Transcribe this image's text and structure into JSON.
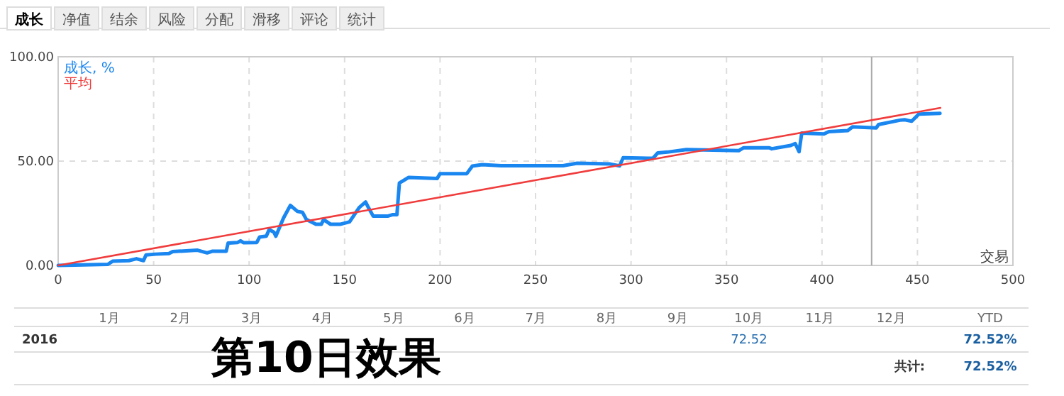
{
  "chart_data": {
    "type": "line",
    "xlabel": "交易",
    "xlim": [
      0,
      500
    ],
    "ylim": [
      0,
      100
    ],
    "xticks": [
      0,
      50,
      100,
      150,
      200,
      250,
      300,
      350,
      400,
      450,
      500
    ],
    "yticks": [
      {
        "value": 0,
        "label": "0.00"
      },
      {
        "value": 50,
        "label": "50.00"
      },
      {
        "value": 100,
        "label": "100.00"
      }
    ],
    "grid": true,
    "legend": "top left",
    "ref_lines": [
      {
        "axis": "x",
        "value": 426,
        "color": "#aaaaaa"
      }
    ],
    "series": [
      {
        "name": "成长, %",
        "color": "#1a86f0",
        "x": [
          0,
          26,
          28.5,
          37,
          41,
          44.7,
          46,
          51,
          58,
          60,
          73,
          78,
          80.6,
          88,
          89,
          94,
          95.5,
          97,
          104,
          105.5,
          109,
          110.5,
          113,
          114,
          118,
          121.6,
          125.3,
          128,
          130,
          135,
          137.8,
          139,
          142.7,
          147.6,
          152.6,
          157.6,
          161,
          162.5,
          165,
          172.5,
          175,
          177.4,
          178.7,
          183.6,
          198.5,
          200,
          214,
          216.9,
          222,
          232,
          251.6,
          264.4,
          271.8,
          289,
          294,
          295.9,
          309,
          311.5,
          314,
          319,
          329,
          356.4,
          359,
          372.4,
          373.7,
          383.6,
          386,
          388,
          389.4,
          401,
          403.6,
          413.5,
          416,
          428.4,
          429.6,
          440.8,
          443.3,
          447,
          450.7,
          461.8
        ],
        "values": [
          0,
          0.5,
          2,
          2.3,
          3.2,
          2.3,
          5,
          5.4,
          5.7,
          6.6,
          7.3,
          6,
          6.8,
          6.8,
          10.7,
          11,
          11.8,
          10.9,
          11,
          13.6,
          14,
          17.2,
          15.9,
          14,
          22.7,
          28.8,
          25.9,
          25.4,
          22,
          19.7,
          19.7,
          22,
          19.7,
          19.7,
          20.9,
          27.7,
          30.4,
          27.7,
          23.6,
          23.6,
          24.3,
          24.3,
          39.5,
          42.2,
          41.7,
          44,
          44,
          47.6,
          48.3,
          47.8,
          47.8,
          47.8,
          49,
          48.6,
          47.7,
          51.6,
          51.4,
          51.4,
          53.9,
          54.3,
          55.5,
          55,
          56.4,
          56.4,
          55.9,
          57.5,
          58.4,
          54.5,
          63.4,
          63,
          64.1,
          64.6,
          66.4,
          65.9,
          67.5,
          69.6,
          69.8,
          69.1,
          72.5,
          72.9
        ]
      },
      {
        "name": "平均",
        "color": "#f03c3c",
        "x": [
          0,
          462
        ],
        "values": [
          0,
          75.5
        ]
      }
    ],
    "annotations": [
      "成长",
      "净值",
      "结余",
      "风险",
      "分配",
      "滑移",
      "评论",
      "统计",
      "1月",
      "2月",
      "3月",
      "4月",
      "5月",
      "6月",
      "7月",
      "8月",
      "9月",
      "10月",
      "11月",
      "12月",
      "YTD",
      "2016",
      "第10日效果",
      "72.52",
      "72.52%",
      "共计:",
      "72.52%"
    ]
  }
}
